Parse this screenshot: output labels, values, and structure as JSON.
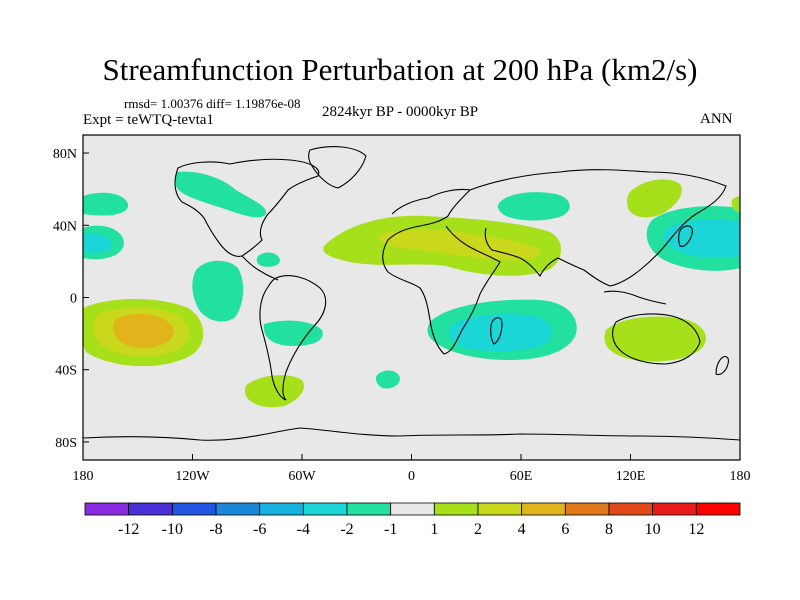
{
  "chart_data": {
    "type": "heatmap",
    "title": "Streamfunction Perturbation at 200 hPa (km2/s)",
    "subtitle_stats": "rmsd= 1.00376 diff= 1.19876e-08",
    "subtitle_center": "2824kyr BP - 0000kyr BP",
    "subtitle_left": "Expt = teWTQ-tevta1",
    "subtitle_right": "ANN",
    "x_ticks": [
      "180",
      "120W",
      "60W",
      "0",
      "60E",
      "120E",
      "180"
    ],
    "y_ticks": [
      "80N",
      "40N",
      "0",
      "40S",
      "80S"
    ],
    "xlim": [
      -180,
      180
    ],
    "ylim": [
      -90,
      90
    ],
    "colorbar": {
      "labels": [
        "-12",
        "-10",
        "-8",
        "-6",
        "-4",
        "-2",
        "-1",
        "1",
        "2",
        "4",
        "6",
        "8",
        "10",
        "12"
      ],
      "colors": [
        "#8a2be2",
        "#4b2fd6",
        "#1f55e0",
        "#1c86d8",
        "#16b2e0",
        "#1ad6d6",
        "#22e0a0",
        "#e8e8e8",
        "#a6e01a",
        "#c9d81a",
        "#e0b41a",
        "#e0781a",
        "#e04a1a",
        "#e81a1a",
        "#ff0000"
      ]
    },
    "features": [
      {
        "name": "central-pacific-south-high",
        "lon": -145,
        "lat": -15,
        "value": 4
      },
      {
        "name": "south-indian-ocean-low",
        "lon": 60,
        "lat": -15,
        "value": -4
      },
      {
        "name": "north-africa-high",
        "lon": 20,
        "lat": 30,
        "value": 2
      },
      {
        "name": "north-pacific-west-low",
        "lon": 160,
        "lat": 30,
        "value": -4
      },
      {
        "name": "central-asia-low",
        "lon": 60,
        "lat": 50,
        "value": -2
      },
      {
        "name": "north-america-low",
        "lon": -115,
        "lat": 55,
        "value": -2
      },
      {
        "name": "north-pacific-east-low",
        "lon": -175,
        "lat": 30,
        "value": -2
      },
      {
        "name": "tropical-atlantic-low",
        "lon": -100,
        "lat": 0,
        "value": -2
      },
      {
        "name": "south-atlantic-low",
        "lon": -60,
        "lat": -20,
        "value": -2
      },
      {
        "name": "australia-high",
        "lon": 135,
        "lat": -25,
        "value": 2
      },
      {
        "name": "south-america-tip-high",
        "lon": -70,
        "lat": -50,
        "value": 2
      },
      {
        "name": "east-asia-high",
        "lon": 135,
        "lat": 55,
        "value": 2
      }
    ]
  }
}
